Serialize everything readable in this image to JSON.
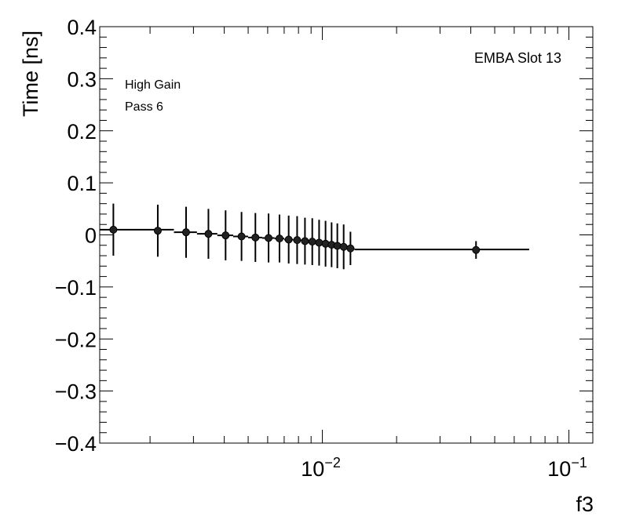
{
  "chart_data": {
    "type": "scatter",
    "xlabel": "f3",
    "ylabel": "Time [ns]",
    "x_scale": "log",
    "xlim": [
      0.00125,
      0.125
    ],
    "ylim": [
      -0.4,
      0.4
    ],
    "y_ticks": [
      "0.4",
      "0.3",
      "0.2",
      "0.1",
      "0",
      "−0.1",
      "−0.2",
      "−0.3",
      "−0.4"
    ],
    "x_tick_labels": [
      {
        "value": 0.01,
        "base": "10",
        "exp": "−2"
      },
      {
        "value": 0.1,
        "base": "10",
        "exp": "−1"
      }
    ],
    "annotations": {
      "slot": "EMBA Slot 13",
      "gain": "High Gain",
      "pass": "Pass 6"
    },
    "series": [
      {
        "points": [
          {
            "x": 0.00142,
            "y": 0.01,
            "err": 0.05
          },
          {
            "x": 0.00215,
            "y": 0.008,
            "err": 0.05
          },
          {
            "x": 0.0028,
            "y": 0.005,
            "err": 0.049
          },
          {
            "x": 0.00345,
            "y": 0.002,
            "err": 0.048
          },
          {
            "x": 0.00405,
            "y": -0.001,
            "err": 0.048
          },
          {
            "x": 0.0047,
            "y": -0.003,
            "err": 0.047
          },
          {
            "x": 0.00535,
            "y": -0.005,
            "err": 0.047
          },
          {
            "x": 0.00605,
            "y": -0.006,
            "err": 0.047
          },
          {
            "x": 0.0067,
            "y": -0.007,
            "err": 0.046
          },
          {
            "x": 0.0073,
            "y": -0.009,
            "err": 0.046
          },
          {
            "x": 0.0079,
            "y": -0.01,
            "err": 0.046
          },
          {
            "x": 0.0085,
            "y": -0.012,
            "err": 0.045
          },
          {
            "x": 0.0091,
            "y": -0.013,
            "err": 0.045
          },
          {
            "x": 0.0097,
            "y": -0.015,
            "err": 0.044
          },
          {
            "x": 0.0103,
            "y": -0.017,
            "err": 0.044
          },
          {
            "x": 0.0109,
            "y": -0.019,
            "err": 0.043
          },
          {
            "x": 0.0115,
            "y": -0.021,
            "err": 0.043
          },
          {
            "x": 0.0122,
            "y": -0.023,
            "err": 0.043
          },
          {
            "x": 0.013,
            "y": -0.026,
            "err": 0.032
          },
          {
            "x": 0.042,
            "y": -0.029,
            "err": 0.017
          }
        ],
        "fit_segments": [
          {
            "x0": 0.00125,
            "x1": 0.0025,
            "y": 0.01
          },
          {
            "x0": 0.0025,
            "x1": 0.0031,
            "y": 0.005
          },
          {
            "x0": 0.0031,
            "x1": 0.00375,
            "y": 0.002
          },
          {
            "x0": 0.00375,
            "x1": 0.00435,
            "y": -0.001
          },
          {
            "x0": 0.00435,
            "x1": 0.005,
            "y": -0.003
          },
          {
            "x0": 0.005,
            "x1": 0.0057,
            "y": -0.005
          },
          {
            "x0": 0.0057,
            "x1": 0.0064,
            "y": -0.006
          },
          {
            "x0": 0.0064,
            "x1": 0.007,
            "y": -0.007
          },
          {
            "x0": 0.007,
            "x1": 0.0076,
            "y": -0.009
          },
          {
            "x0": 0.0076,
            "x1": 0.0082,
            "y": -0.01
          },
          {
            "x0": 0.0082,
            "x1": 0.0088,
            "y": -0.012
          },
          {
            "x0": 0.0088,
            "x1": 0.0094,
            "y": -0.013
          },
          {
            "x0": 0.0094,
            "x1": 0.01,
            "y": -0.015
          },
          {
            "x0": 0.01,
            "x1": 0.0106,
            "y": -0.017
          },
          {
            "x0": 0.0106,
            "x1": 0.0112,
            "y": -0.019
          },
          {
            "x0": 0.0112,
            "x1": 0.01185,
            "y": -0.021
          },
          {
            "x0": 0.01185,
            "x1": 0.0126,
            "y": -0.023
          },
          {
            "x0": 0.0126,
            "x1": 0.0135,
            "y": -0.026
          },
          {
            "x0": 0.0135,
            "x1": 0.069,
            "y": -0.028
          }
        ]
      }
    ]
  }
}
